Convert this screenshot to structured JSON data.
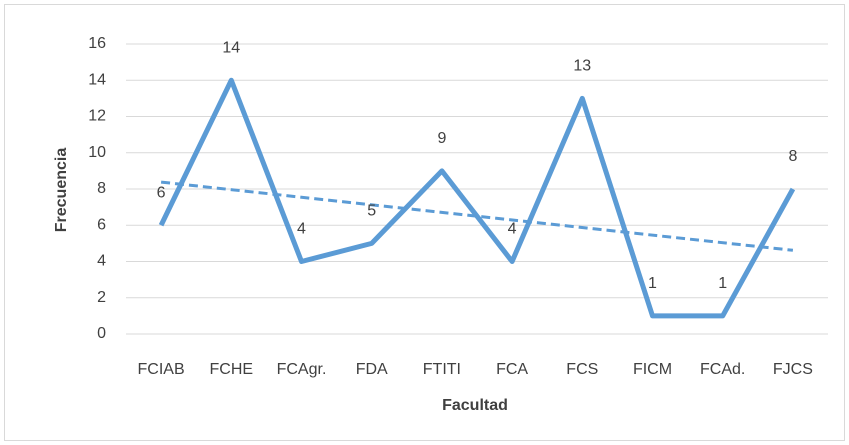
{
  "chart_data": {
    "type": "line",
    "x_label": "Facultad",
    "y_label": "Frecuencia",
    "categories": [
      "FCIAB",
      "FCHE",
      "FCAgr.",
      "FDA",
      "FTITI",
      "FCA",
      "FCS",
      "FICM",
      "FCAd.",
      "FJCS"
    ],
    "values": [
      6,
      14,
      4,
      5,
      9,
      4,
      13,
      1,
      1,
      8
    ],
    "color": "#5b9bd5",
    "ylim": [
      0,
      16
    ],
    "yticks": [
      0,
      2,
      4,
      6,
      8,
      10,
      12,
      14,
      16
    ],
    "grid": true,
    "data_labels": true,
    "trendline": "linear"
  }
}
